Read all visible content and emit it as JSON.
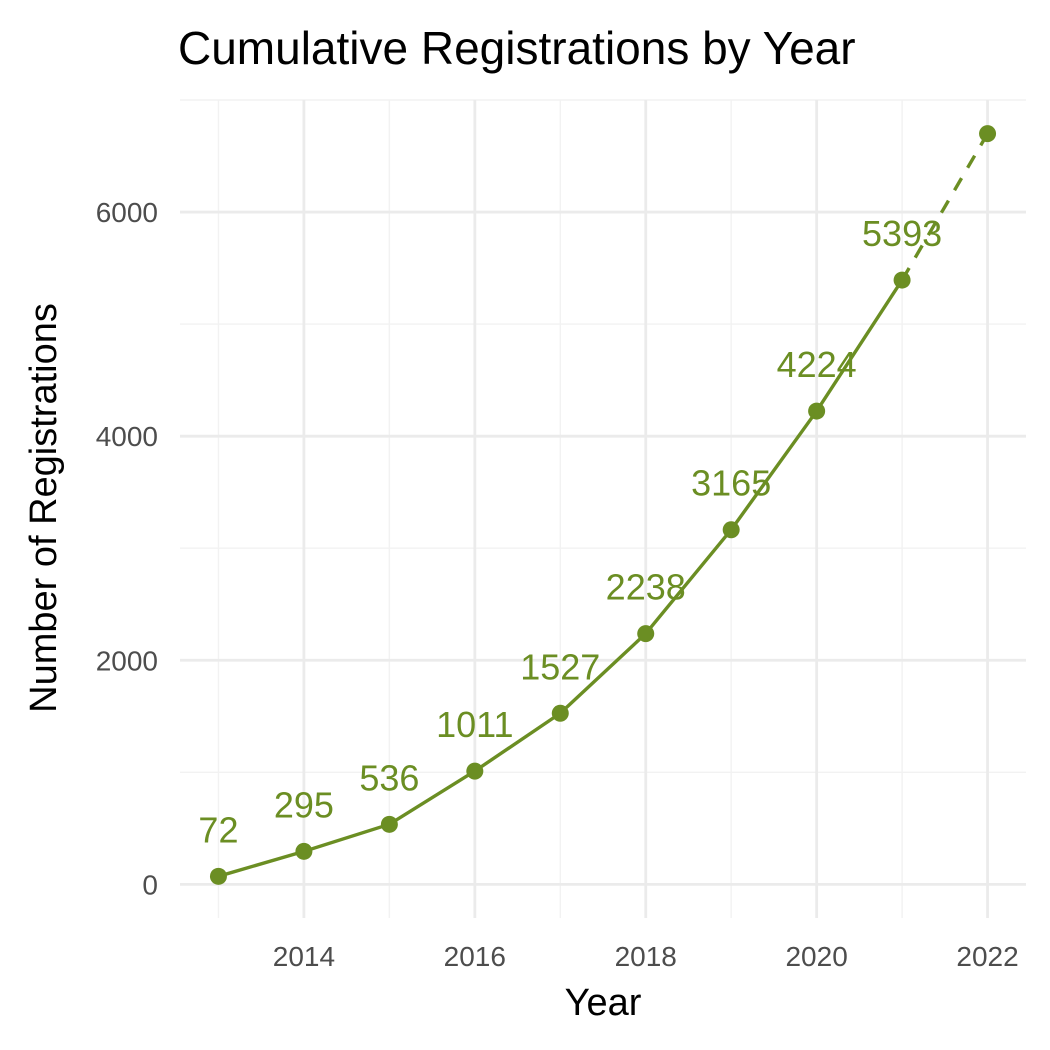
{
  "chart_data": {
    "type": "line",
    "title": "Cumulative Registrations by Year",
    "xlabel": "Year",
    "ylabel": "Number of Registrations",
    "xlim": [
      2012.55,
      2022.45
    ],
    "ylim": [
      -300,
      7000
    ],
    "x_ticks": [
      2014,
      2016,
      2018,
      2020,
      2022
    ],
    "y_ticks": [
      0,
      2000,
      4000,
      6000
    ],
    "grid": true,
    "legend": "none",
    "series": [
      {
        "x": [
          2013,
          2014,
          2015,
          2016,
          2017,
          2018,
          2019,
          2020,
          2021
        ],
        "values": [
          72,
          295,
          536,
          1011,
          1527,
          2238,
          3165,
          4224,
          5393
        ],
        "labels": [
          "72",
          "295",
          "536",
          "1011",
          "1527",
          "2238",
          "3165",
          "4224",
          "5393"
        ],
        "line_style": "solid"
      },
      {
        "x": [
          2021,
          2022
        ],
        "values": [
          5393,
          6700
        ],
        "line_style": "dashed"
      }
    ],
    "colors": {
      "series": "#6b8e23",
      "grid": "#ebebeb",
      "tick_text": "#4d4d4d"
    }
  }
}
